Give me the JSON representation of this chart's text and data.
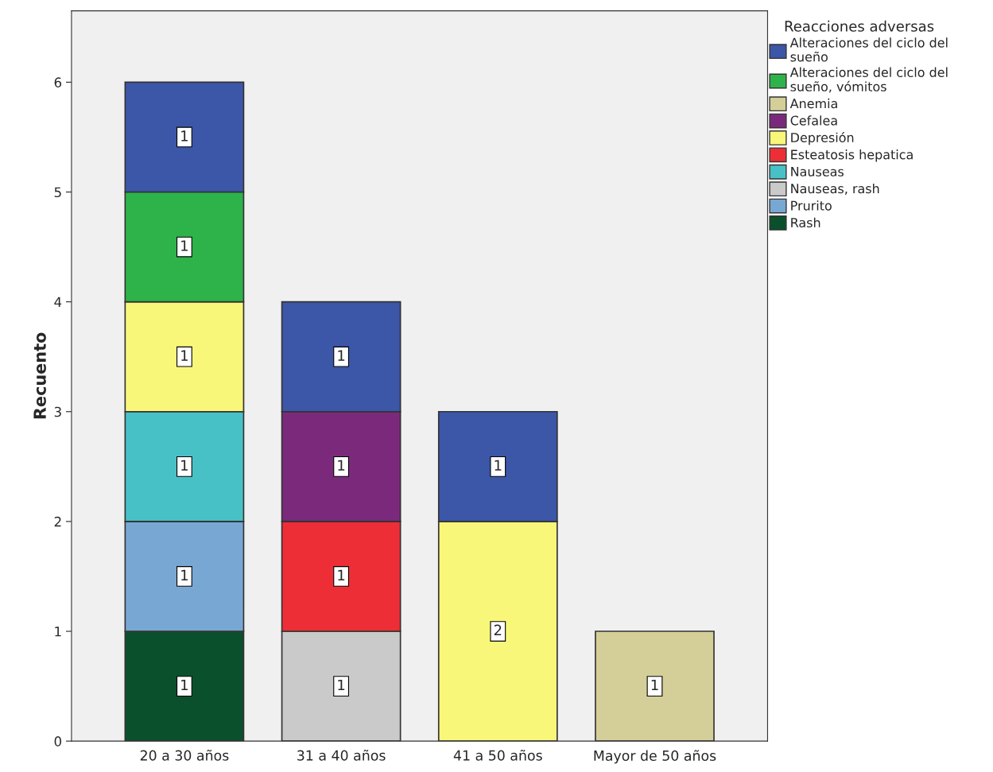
{
  "chart_data": {
    "type": "bar",
    "stacked": true,
    "ylabel": "Recuento",
    "legend_title": "Reacciones adversas",
    "legend": "top right",
    "grid": false,
    "data_labels": true,
    "categories": [
      "20 a 30 años",
      "31 a 40 años",
      "41 a 50 años",
      "Mayor de 50 años"
    ],
    "ylim": [
      0,
      6.65
    ],
    "yticks": [
      0,
      1,
      2,
      3,
      4,
      5,
      6
    ],
    "series": [
      {
        "name": "Rash",
        "color": "#0a502c",
        "values": [
          1,
          null,
          null,
          null
        ]
      },
      {
        "name": "Prurito",
        "color": "#79a7d4",
        "values": [
          1,
          null,
          null,
          null
        ]
      },
      {
        "name": "Nauseas, rash",
        "color": "#cacaca",
        "values": [
          null,
          1,
          null,
          null
        ]
      },
      {
        "name": "Nauseas",
        "color": "#48c1c6",
        "values": [
          1,
          null,
          null,
          null
        ]
      },
      {
        "name": "Esteatosis hepatica",
        "color": "#ee2e37",
        "values": [
          null,
          1,
          null,
          null
        ]
      },
      {
        "name": "Depresión",
        "color": "#f9f77a",
        "values": [
          1,
          null,
          2,
          null
        ]
      },
      {
        "name": "Cefalea",
        "color": "#7b2a7b",
        "values": [
          null,
          1,
          null,
          null
        ]
      },
      {
        "name": "Anemia",
        "color": "#d4cf98",
        "values": [
          null,
          null,
          null,
          1
        ]
      },
      {
        "name": "Alteraciones del ciclo del sueño, vómitos",
        "color": "#2db34a",
        "values": [
          1,
          null,
          null,
          null
        ]
      },
      {
        "name": "Alteraciones del ciclo del sueño",
        "color": "#3c56a8",
        "values": [
          1,
          1,
          1,
          null
        ]
      }
    ]
  }
}
